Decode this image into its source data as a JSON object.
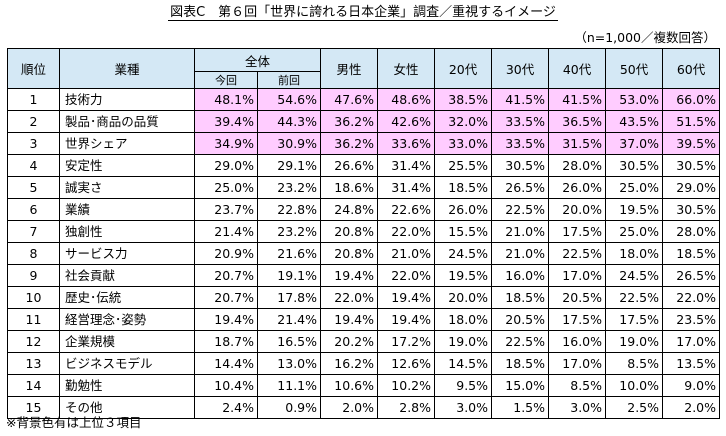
{
  "title": "図表C　第６回「世界に誇れる日本企業」調査／重視するイメージ",
  "note": "（n=1,000／複数回答）",
  "headers": {
    "rank": "順位",
    "item": "業種",
    "overall": "全体",
    "current": "今回",
    "previous": "前回",
    "male": "男性",
    "female": "女性",
    "age20": "20代",
    "age30": "30代",
    "age40": "40代",
    "age50": "50代",
    "age60": "60代"
  },
  "highlight_color": "#ffccff",
  "header_color": "#d4e8f5",
  "rows": [
    {
      "rank": "1",
      "item": "技術力",
      "values": [
        "48.1%",
        "54.6%",
        "47.6%",
        "48.6%",
        "38.5%",
        "41.5%",
        "41.5%",
        "53.0%",
        "66.0%"
      ]
    },
    {
      "rank": "2",
      "item": "製品･商品の品質",
      "values": [
        "39.4%",
        "44.3%",
        "36.2%",
        "42.6%",
        "32.0%",
        "33.5%",
        "36.5%",
        "43.5%",
        "51.5%"
      ]
    },
    {
      "rank": "3",
      "item": "世界シェア",
      "values": [
        "34.9%",
        "30.9%",
        "36.2%",
        "33.6%",
        "33.0%",
        "33.5%",
        "31.5%",
        "37.0%",
        "39.5%"
      ]
    },
    {
      "rank": "4",
      "item": "安定性",
      "values": [
        "29.0%",
        "29.1%",
        "26.6%",
        "31.4%",
        "25.5%",
        "30.5%",
        "28.0%",
        "30.5%",
        "30.5%"
      ]
    },
    {
      "rank": "5",
      "item": "誠実さ",
      "values": [
        "25.0%",
        "23.2%",
        "18.6%",
        "31.4%",
        "18.5%",
        "26.5%",
        "26.0%",
        "25.0%",
        "29.0%"
      ]
    },
    {
      "rank": "6",
      "item": "業績",
      "values": [
        "23.7%",
        "22.8%",
        "24.8%",
        "22.6%",
        "26.0%",
        "22.5%",
        "20.0%",
        "19.5%",
        "30.5%"
      ]
    },
    {
      "rank": "7",
      "item": "独創性",
      "values": [
        "21.4%",
        "23.2%",
        "20.8%",
        "22.0%",
        "15.5%",
        "21.0%",
        "17.5%",
        "25.0%",
        "28.0%"
      ]
    },
    {
      "rank": "8",
      "item": "サービス力",
      "values": [
        "20.9%",
        "21.6%",
        "20.8%",
        "21.0%",
        "24.5%",
        "21.0%",
        "22.5%",
        "18.0%",
        "18.5%"
      ]
    },
    {
      "rank": "9",
      "item": "社会貢献",
      "values": [
        "20.7%",
        "19.1%",
        "19.4%",
        "22.0%",
        "19.5%",
        "16.0%",
        "17.0%",
        "24.5%",
        "26.5%"
      ]
    },
    {
      "rank": "10",
      "item": "歴史･伝統",
      "values": [
        "20.7%",
        "17.8%",
        "22.0%",
        "19.4%",
        "20.0%",
        "18.5%",
        "20.5%",
        "22.5%",
        "22.0%"
      ]
    },
    {
      "rank": "11",
      "item": "経営理念･姿勢",
      "values": [
        "19.4%",
        "21.4%",
        "19.4%",
        "19.4%",
        "18.0%",
        "20.5%",
        "17.5%",
        "17.5%",
        "23.5%"
      ]
    },
    {
      "rank": "12",
      "item": "企業規模",
      "values": [
        "18.7%",
        "16.5%",
        "20.2%",
        "17.2%",
        "19.0%",
        "22.5%",
        "16.0%",
        "19.0%",
        "17.0%"
      ]
    },
    {
      "rank": "13",
      "item": "ビジネスモデル",
      "values": [
        "14.4%",
        "13.0%",
        "16.2%",
        "12.6%",
        "14.5%",
        "18.5%",
        "17.0%",
        "8.5%",
        "13.5%"
      ]
    },
    {
      "rank": "14",
      "item": "勤勉性",
      "values": [
        "10.4%",
        "11.1%",
        "10.6%",
        "10.2%",
        "9.5%",
        "15.0%",
        "8.5%",
        "10.0%",
        "9.0%"
      ]
    },
    {
      "rank": "15",
      "item": "その他",
      "values": [
        "2.4%",
        "0.9%",
        "2.0%",
        "2.8%",
        "3.0%",
        "1.5%",
        "3.0%",
        "2.5%",
        "2.0%"
      ]
    }
  ],
  "highlight_top_n": 3,
  "footnote": "※背景色有は上位３項目"
}
